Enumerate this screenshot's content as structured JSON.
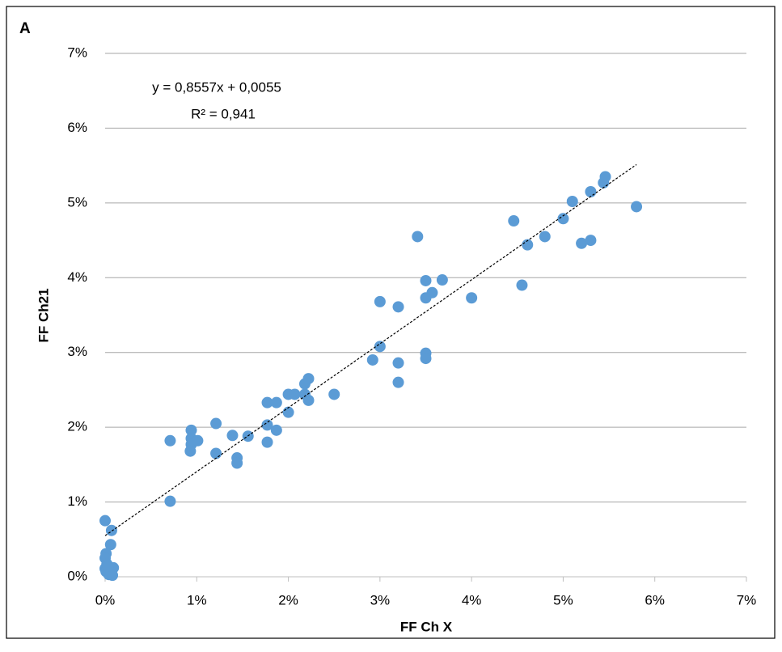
{
  "chart_data": {
    "type": "scatter",
    "title": "A",
    "x_label": "FF Ch X",
    "y_label": "FF Ch21",
    "color": "#5b9bd5",
    "grid": true,
    "xlim": [
      0,
      0.07
    ],
    "ylim": [
      0,
      0.07
    ],
    "xticks": [
      {
        "value": 0,
        "label": "0%"
      },
      {
        "value": 0.01,
        "label": "1%"
      },
      {
        "value": 0.02,
        "label": "2%"
      },
      {
        "value": 0.03,
        "label": "3%"
      },
      {
        "value": 0.04,
        "label": "4%"
      },
      {
        "value": 0.05,
        "label": "5%"
      },
      {
        "value": 0.06,
        "label": "6%"
      },
      {
        "value": 0.07,
        "label": "7%"
      }
    ],
    "yticks": [
      {
        "value": 0,
        "label": "0%"
      },
      {
        "value": 0.01,
        "label": "1%"
      },
      {
        "value": 0.02,
        "label": "2%"
      },
      {
        "value": 0.03,
        "label": "3%"
      },
      {
        "value": 0.04,
        "label": "4%"
      },
      {
        "value": 0.05,
        "label": "5%"
      },
      {
        "value": 0.06,
        "label": "6%"
      },
      {
        "value": 0.07,
        "label": "7%"
      }
    ],
    "x": [
      0,
      0.0007,
      0.0006,
      0.0001,
      0,
      0.0002,
      0,
      0.0001,
      0.0004,
      0.0009,
      0.0008,
      0.0003,
      0.0071,
      0.0071,
      0.0094,
      0.0094,
      0.0094,
      0.0093,
      0.0101,
      0.0121,
      0.0121,
      0.0139,
      0.0144,
      0.0144,
      0.0156,
      0.0177,
      0.0177,
      0.0177,
      0.0187,
      0.0187,
      0.02,
      0.02,
      0.0207,
      0.0218,
      0.0218,
      0.0222,
      0.0222,
      0.025,
      0.0292,
      0.03,
      0.03,
      0.032,
      0.032,
      0.032,
      0.0341,
      0.035,
      0.035,
      0.035,
      0.035,
      0.0357,
      0.0368,
      0.04,
      0.0446,
      0.0455,
      0.0461,
      0.048,
      0.05,
      0.051,
      0.052,
      0.053,
      0.053,
      0.0544,
      0.0546,
      0.058
    ],
    "y": [
      0.0075,
      0.0062,
      0.0043,
      0.0031,
      0.0025,
      0.0017,
      0.0011,
      0.0007,
      0.0003,
      0.0012,
      0.0002,
      0.0014,
      0.0182,
      0.0101,
      0.0196,
      0.0185,
      0.0177,
      0.0168,
      0.0182,
      0.0205,
      0.0165,
      0.0189,
      0.0159,
      0.0152,
      0.0188,
      0.0233,
      0.0203,
      0.018,
      0.0233,
      0.0196,
      0.022,
      0.0244,
      0.0244,
      0.0244,
      0.0258,
      0.0265,
      0.0236,
      0.0244,
      0.029,
      0.0308,
      0.0368,
      0.0361,
      0.0286,
      0.026,
      0.0455,
      0.0396,
      0.0373,
      0.0299,
      0.0292,
      0.038,
      0.0397,
      0.0373,
      0.0476,
      0.039,
      0.0444,
      0.0455,
      0.0479,
      0.0502,
      0.0446,
      0.045,
      0.0515,
      0.0527,
      0.0535,
      0.0495
    ],
    "trendline": {
      "equation": "y = 0,8557x + 0,0055",
      "r_squared": "R² = 0,941",
      "slope": 0.8557,
      "intercept": 0.0055,
      "xlim": [
        0,
        0.058
      ]
    }
  }
}
